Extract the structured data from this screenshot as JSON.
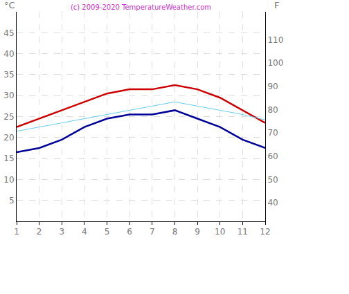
{
  "chart_data": {
    "type": "line",
    "title": "(c) 2009-2020 TemperatureWeather.com",
    "y_label": "°C",
    "y2_label": "F",
    "x": [
      1,
      2,
      3,
      4,
      5,
      6,
      7,
      8,
      9,
      10,
      11,
      12
    ],
    "xlim": [
      1,
      12
    ],
    "xticks": [
      1,
      2,
      3,
      4,
      5,
      6,
      7,
      8,
      9,
      10,
      11,
      12
    ],
    "ylim": [
      0,
      50
    ],
    "yticks": [
      5,
      10,
      15,
      20,
      25,
      30,
      35,
      40,
      45
    ],
    "y2lim": [
      32,
      122
    ],
    "y2ticks": [
      40,
      50,
      60,
      70,
      80,
      90,
      100,
      110
    ],
    "grid": true,
    "series": [
      {
        "color": "#cc0000",
        "values": [
          22.5,
          24.5,
          26.5,
          28.5,
          30.5,
          31.5,
          31.5,
          32.5,
          31.5,
          29.5,
          26.5,
          23.5
        ]
      },
      {
        "color": "#000099",
        "values": [
          16.5,
          17.5,
          19.5,
          22.5,
          24.5,
          25.5,
          25.5,
          26.5,
          24.5,
          22.5,
          19.5,
          17.5
        ]
      },
      {
        "color": "#66ccee",
        "values": [
          21.5,
          22.5,
          23.5,
          24.5,
          25.5,
          26.5,
          27.5,
          28.5,
          27.5,
          26.5,
          25.5,
          24.2
        ]
      }
    ]
  }
}
